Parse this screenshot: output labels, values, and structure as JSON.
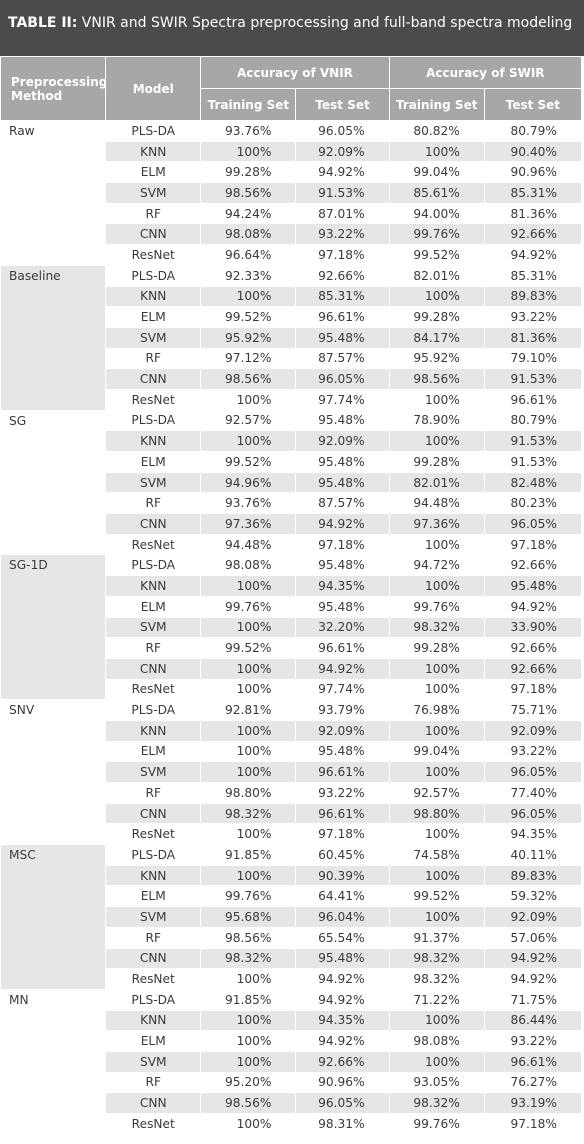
{
  "header": {
    "label": "TABLE II:",
    "title": "VNIR and SWIR Spectra preprocessing and full-band spectra modeling"
  },
  "table": {
    "columns": {
      "method": "Preprocessing Method",
      "model": "Model",
      "vnir": "Accuracy of VNIR",
      "swir": "Accuracy of SWIR",
      "subheaders": [
        "Training Set",
        "Test Set",
        "Training Set",
        "Test Set"
      ]
    },
    "groups": [
      {
        "method": "Raw",
        "rows": [
          [
            "PLS-DA",
            "93.76%",
            "96.05%",
            "80.82%",
            "80.79%"
          ],
          [
            "KNN",
            "100%",
            "92.09%",
            "100%",
            "90.40%"
          ],
          [
            "ELM",
            "99.28%",
            "94.92%",
            "99.04%",
            "90.96%"
          ],
          [
            "SVM",
            "98.56%",
            "91.53%",
            "85.61%",
            "85.31%"
          ],
          [
            "RF",
            "94.24%",
            "87.01%",
            "94.00%",
            "81.36%"
          ],
          [
            "CNN",
            "98.08%",
            "93.22%",
            "99.76%",
            "92.66%"
          ],
          [
            "ResNet",
            "96.64%",
            "97.18%",
            "99.52%",
            "94.92%"
          ]
        ]
      },
      {
        "method": "Baseline",
        "rows": [
          [
            "PLS-DA",
            "92.33%",
            "92.66%",
            "82.01%",
            "85.31%"
          ],
          [
            "KNN",
            "100%",
            "85.31%",
            "100%",
            "89.83%"
          ],
          [
            "ELM",
            "99.52%",
            "96.61%",
            "99.28%",
            "93.22%"
          ],
          [
            "SVM",
            "95.92%",
            "95.48%",
            "84.17%",
            "81.36%"
          ],
          [
            "RF",
            "97.12%",
            "87.57%",
            "95.92%",
            "79.10%"
          ],
          [
            "CNN",
            "98.56%",
            "96.05%",
            "98.56%",
            "91.53%"
          ],
          [
            "ResNet",
            "100%",
            "97.74%",
            "100%",
            "96.61%"
          ]
        ]
      },
      {
        "method": "SG",
        "rows": [
          [
            "PLS-DA",
            "92.57%",
            "95.48%",
            "78.90%",
            "80.79%"
          ],
          [
            "KNN",
            "100%",
            "92.09%",
            "100%",
            "91.53%"
          ],
          [
            "ELM",
            "99.52%",
            "95.48%",
            "99.28%",
            "91.53%"
          ],
          [
            "SVM",
            "94.96%",
            "95.48%",
            "82.01%",
            "82.48%"
          ],
          [
            "RF",
            "93.76%",
            "87.57%",
            "94.48%",
            "80.23%"
          ],
          [
            "CNN",
            "97.36%",
            "94.92%",
            "97.36%",
            "96.05%"
          ],
          [
            "ResNet",
            "94.48%",
            "97.18%",
            "100%",
            "97.18%"
          ]
        ]
      },
      {
        "method": "SG-1D",
        "rows": [
          [
            "PLS-DA",
            "98.08%",
            "95.48%",
            "94.72%",
            "92.66%"
          ],
          [
            "KNN",
            "100%",
            "94.35%",
            "100%",
            "95.48%"
          ],
          [
            "ELM",
            "99.76%",
            "95.48%",
            "99.76%",
            "94.92%"
          ],
          [
            "SVM",
            "100%",
            "32.20%",
            "98.32%",
            "33.90%"
          ],
          [
            "RF",
            "99.52%",
            "96.61%",
            "99.28%",
            "92.66%"
          ],
          [
            "CNN",
            "100%",
            "94.92%",
            "100%",
            "92.66%"
          ],
          [
            "ResNet",
            "100%",
            "97.74%",
            "100%",
            "97.18%"
          ]
        ]
      },
      {
        "method": "SNV",
        "rows": [
          [
            "PLS-DA",
            "92.81%",
            "93.79%",
            "76.98%",
            "75.71%"
          ],
          [
            "KNN",
            "100%",
            "92.09%",
            "100%",
            "92.09%"
          ],
          [
            "ELM",
            "100%",
            "95.48%",
            "99.04%",
            "93.22%"
          ],
          [
            "SVM",
            "100%",
            "96.61%",
            "100%",
            "96.05%"
          ],
          [
            "RF",
            "98.80%",
            "93.22%",
            "92.57%",
            "77.40%"
          ],
          [
            "CNN",
            "98.32%",
            "96.61%",
            "98.80%",
            "96.05%"
          ],
          [
            "ResNet",
            "100%",
            "97.18%",
            "100%",
            "94.35%"
          ]
        ]
      },
      {
        "method": "MSC",
        "rows": [
          [
            "PLS-DA",
            "91.85%",
            "60.45%",
            "74.58%",
            "40.11%"
          ],
          [
            "KNN",
            "100%",
            "90.39%",
            "100%",
            "89.83%"
          ],
          [
            "ELM",
            "99.76%",
            "64.41%",
            "99.52%",
            "59.32%"
          ],
          [
            "SVM",
            "95.68%",
            "96.04%",
            "100%",
            "92.09%"
          ],
          [
            "RF",
            "98.56%",
            "65.54%",
            "91.37%",
            "57.06%"
          ],
          [
            "CNN",
            "98.32%",
            "95.48%",
            "98.32%",
            "94.92%"
          ],
          [
            "ResNet",
            "100%",
            "94.92%",
            "98.32%",
            "94.92%"
          ]
        ]
      },
      {
        "method": "MN",
        "rows": [
          [
            "PLS-DA",
            "91.85%",
            "94.92%",
            "71.22%",
            "71.75%"
          ],
          [
            "KNN",
            "100%",
            "94.35%",
            "100%",
            "86.44%"
          ],
          [
            "ELM",
            "100%",
            "94.92%",
            "98.08%",
            "93.22%"
          ],
          [
            "SVM",
            "100%",
            "92.66%",
            "100%",
            "96.61%"
          ],
          [
            "RF",
            "95.20%",
            "90.96%",
            "93.05%",
            "76.27%"
          ],
          [
            "CNN",
            "98.56%",
            "96.05%",
            "98.32%",
            "93.19%"
          ],
          [
            "ResNet",
            "100%",
            "98.31%",
            "99.76%",
            "97.18%"
          ]
        ]
      }
    ]
  }
}
